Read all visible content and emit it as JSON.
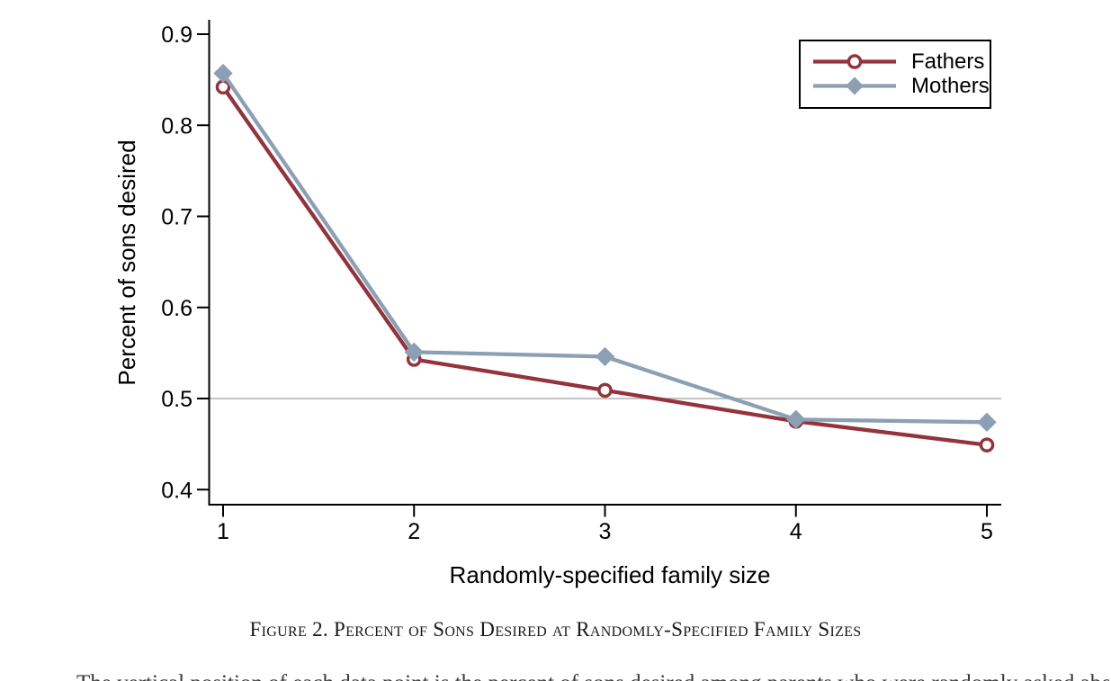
{
  "page": {
    "background": "#FFFFFF"
  },
  "chart_data": {
    "type": "line",
    "title": "",
    "x": [
      1,
      2,
      3,
      4,
      5
    ],
    "series": [
      {
        "name": "Fathers",
        "marker": "open-circle",
        "color": "#94333C",
        "values": [
          0.842,
          0.543,
          0.509,
          0.475,
          0.449
        ]
      },
      {
        "name": "Mothers",
        "marker": "filled-diamond",
        "color": "#8CA0B4",
        "values": [
          0.857,
          0.551,
          0.546,
          0.477,
          0.474
        ]
      }
    ],
    "xlabel": "Randomly-specified family size",
    "ylabel": "Percent of sons desired",
    "xlim": [
      1,
      5
    ],
    "ylim": [
      0.4,
      0.9
    ],
    "xticks": [
      1,
      2,
      3,
      4,
      5
    ],
    "xtick_labels": [
      "1",
      "2",
      "3",
      "4",
      "5"
    ],
    "yticks": [
      0.4,
      0.5,
      0.6,
      0.7,
      0.8,
      0.9
    ],
    "ytick_labels": [
      "0.4",
      "0.5",
      "0.6",
      "0.7",
      "0.8",
      "0.9"
    ],
    "reference_line_y": 0.5,
    "grid": false,
    "legend_position": "top-right"
  },
  "colors": {
    "axis": "#000000",
    "reference_line": "#B0B0B0",
    "legend_border": "#000000",
    "marker_fill_open": "#FFFFFF"
  },
  "caption": "Figure 2. Percent of Sons Desired at Randomly-Specified Family Sizes",
  "body_text_clipped": "The vertical position of each data point is the percent of sons desired among parents who were randomly asked about each family size and the hypothetical"
}
